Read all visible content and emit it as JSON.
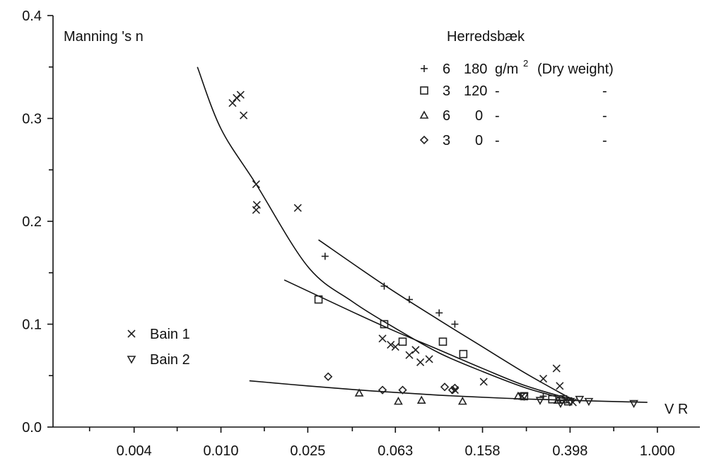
{
  "chart_data": {
    "type": "scatter",
    "ylabel": "Manning 's n",
    "xlabel": "V R",
    "x_scale": "log",
    "x_ticks": [
      0.004,
      0.01,
      0.025,
      0.063,
      0.158,
      0.398,
      1.0
    ],
    "x_tick_labels": [
      "0.004",
      "0.010",
      "0.025",
      "0.063",
      "0.158",
      "0.398",
      "1.000"
    ],
    "y_ticks": [
      0.0,
      0.1,
      0.2,
      0.3,
      0.4
    ],
    "y_tick_labels": [
      "0.0",
      "0.1",
      "0.2",
      "0.3",
      "0.4"
    ],
    "xlim": [
      0.0017,
      1.4
    ],
    "ylim": [
      0,
      0.4
    ],
    "grid": false,
    "legend_top": {
      "title": "Herredsbæk",
      "rows": [
        {
          "marker": "plus",
          "col1": "6",
          "col2": "180",
          "col3": "g/m",
          "sup": "2",
          "col4": "(Dry weight)"
        },
        {
          "marker": "square",
          "col1": "3",
          "col2": "120",
          "col3": "-",
          "col4": "-"
        },
        {
          "marker": "triangle",
          "col1": "6",
          "col2": "0",
          "col3": "-",
          "col4": "-"
        },
        {
          "marker": "diamond",
          "col1": "3",
          "col2": "0",
          "col3": "-",
          "col4": "-"
        }
      ]
    },
    "legend_bottom": [
      {
        "marker": "x",
        "label": "Bain 1"
      },
      {
        "marker": "tri-down",
        "label": "Bain 2"
      }
    ],
    "series": [
      {
        "marker": "plus",
        "points": [
          [
            0.03,
            0.166
          ],
          [
            0.056,
            0.137
          ],
          [
            0.073,
            0.124
          ],
          [
            0.1,
            0.111
          ],
          [
            0.118,
            0.1
          ],
          [
            0.3,
            0.03
          ]
        ]
      },
      {
        "marker": "square",
        "points": [
          [
            0.028,
            0.124
          ],
          [
            0.056,
            0.1
          ],
          [
            0.068,
            0.083
          ],
          [
            0.104,
            0.083
          ],
          [
            0.129,
            0.071
          ],
          [
            0.245,
            0.03
          ],
          [
            0.33,
            0.027
          ],
          [
            0.37,
            0.027
          ],
          [
            0.39,
            0.025
          ]
        ]
      },
      {
        "marker": "triangle",
        "points": [
          [
            0.043,
            0.033
          ],
          [
            0.065,
            0.025
          ],
          [
            0.083,
            0.026
          ],
          [
            0.128,
            0.025
          ],
          [
            0.23,
            0.03
          ],
          [
            0.35,
            0.026
          ]
        ]
      },
      {
        "marker": "diamond",
        "points": [
          [
            0.031,
            0.049
          ],
          [
            0.055,
            0.036
          ],
          [
            0.068,
            0.036
          ],
          [
            0.106,
            0.039
          ],
          [
            0.118,
            0.038
          ],
          [
            0.115,
            0.036
          ]
        ]
      },
      {
        "marker": "x",
        "points": [
          [
            0.0113,
            0.315
          ],
          [
            0.0118,
            0.32
          ],
          [
            0.0123,
            0.323
          ],
          [
            0.0127,
            0.303
          ],
          [
            0.0145,
            0.236
          ],
          [
            0.0146,
            0.216
          ],
          [
            0.0145,
            0.211
          ],
          [
            0.0225,
            0.213
          ],
          [
            0.055,
            0.086
          ],
          [
            0.06,
            0.08
          ],
          [
            0.063,
            0.078
          ],
          [
            0.073,
            0.07
          ],
          [
            0.078,
            0.075
          ],
          [
            0.082,
            0.063
          ],
          [
            0.09,
            0.066
          ],
          [
            0.118,
            0.036
          ],
          [
            0.16,
            0.044
          ],
          [
            0.24,
            0.03
          ],
          [
            0.3,
            0.047
          ],
          [
            0.345,
            0.057
          ],
          [
            0.357,
            0.04
          ],
          [
            0.38,
            0.026
          ],
          [
            0.41,
            0.024
          ]
        ]
      },
      {
        "marker": "tri-down",
        "points": [
          [
            0.245,
            0.03
          ],
          [
            0.29,
            0.026
          ],
          [
            0.36,
            0.023
          ],
          [
            0.4,
            0.025
          ],
          [
            0.44,
            0.027
          ],
          [
            0.485,
            0.025
          ],
          [
            0.78,
            0.023
          ]
        ]
      }
    ],
    "curves": [
      {
        "points": [
          [
            0.0078,
            0.35
          ],
          [
            0.01,
            0.29
          ],
          [
            0.0145,
            0.236
          ],
          [
            0.025,
            0.156
          ],
          [
            0.04,
            0.122
          ],
          [
            0.063,
            0.096
          ],
          [
            0.1,
            0.072
          ],
          [
            0.158,
            0.054
          ],
          [
            0.25,
            0.038
          ],
          [
            0.398,
            0.026
          ]
        ]
      },
      {
        "points": [
          [
            0.028,
            0.182
          ],
          [
            0.056,
            0.138
          ],
          [
            0.1,
            0.104
          ],
          [
            0.158,
            0.078
          ],
          [
            0.25,
            0.052
          ],
          [
            0.398,
            0.028
          ]
        ]
      },
      {
        "points": [
          [
            0.0195,
            0.143
          ],
          [
            0.04,
            0.112
          ],
          [
            0.063,
            0.093
          ],
          [
            0.1,
            0.075
          ],
          [
            0.158,
            0.057
          ],
          [
            0.25,
            0.04
          ],
          [
            0.42,
            0.026
          ]
        ]
      },
      {
        "points": [
          [
            0.0135,
            0.045
          ],
          [
            0.025,
            0.04
          ],
          [
            0.05,
            0.035
          ],
          [
            0.1,
            0.031
          ],
          [
            0.2,
            0.028
          ],
          [
            0.398,
            0.026
          ],
          [
            0.9,
            0.024
          ]
        ]
      }
    ]
  }
}
